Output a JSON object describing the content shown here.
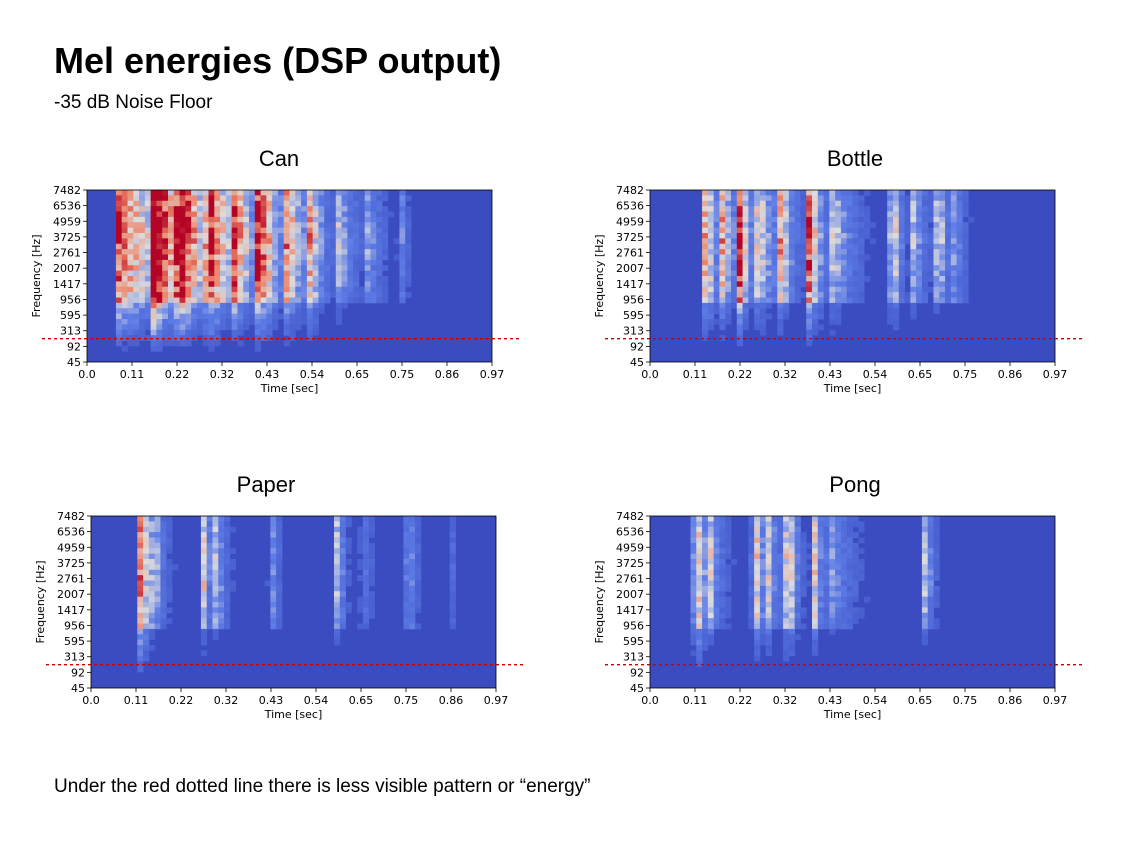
{
  "page": {
    "title": "Mel energies (DSP output)",
    "subtitle": "-35 dB Noise Floor",
    "footnote": "Under the red dotted line there is less visible pattern or “energy”"
  },
  "colors": {
    "background": "#3b4cc0",
    "cold": "#5d7ce6",
    "mid": "#dddcdc",
    "warm": "#ee8468",
    "hot": "#b40426",
    "noise_floor_line": "#cc0000"
  },
  "chart_data": [
    {
      "type": "heatmap",
      "title": "Can",
      "xlabel": "Time [sec]",
      "ylabel": "Frequency [Hz]",
      "x_ticks": [
        "0.0",
        "0.11",
        "0.22",
        "0.32",
        "0.43",
        "0.54",
        "0.65",
        "0.75",
        "0.86",
        "0.97"
      ],
      "y_ticks": [
        "7482",
        "6536",
        "4959",
        "3725",
        "2761",
        "2007",
        "1417",
        "956",
        "595",
        "313",
        "92",
        "45"
      ],
      "xlim": [
        0,
        0.97
      ],
      "noise_floor_hz": 200,
      "colormap": "coolwarm",
      "bursts": [
        {
          "t": 0.075,
          "width": 0.13,
          "intensity": 0.95,
          "low_reach": 0.55
        },
        {
          "t": 0.16,
          "width": 0.05,
          "intensity": 0.9,
          "low_reach": 0.5
        },
        {
          "t": 0.22,
          "width": 0.05,
          "intensity": 0.75,
          "low_reach": 0.5
        },
        {
          "t": 0.29,
          "width": 0.05,
          "intensity": 0.8,
          "low_reach": 0.45
        },
        {
          "t": 0.35,
          "width": 0.04,
          "intensity": 0.75,
          "low_reach": 0.45
        },
        {
          "t": 0.41,
          "width": 0.05,
          "intensity": 0.9,
          "low_reach": 0.5
        },
        {
          "t": 0.48,
          "width": 0.04,
          "intensity": 0.6,
          "low_reach": 0.45
        },
        {
          "t": 0.53,
          "width": 0.04,
          "intensity": 0.6,
          "low_reach": 0.45
        },
        {
          "t": 0.6,
          "width": 0.06,
          "intensity": 0.4,
          "low_reach": 0.3
        },
        {
          "t": 0.67,
          "width": 0.04,
          "intensity": 0.3,
          "low_reach": 0.2
        },
        {
          "t": 0.75,
          "width": 0.02,
          "intensity": 0.35,
          "low_reach": 0.1
        }
      ]
    },
    {
      "type": "heatmap",
      "title": "Bottle",
      "xlabel": "Time [sec]",
      "ylabel": "Frequency [Hz]",
      "x_ticks": [
        "0.0",
        "0.11",
        "0.22",
        "0.32",
        "0.43",
        "0.54",
        "0.65",
        "0.75",
        "0.86",
        "0.97"
      ],
      "y_ticks": [
        "7482",
        "6536",
        "4959",
        "3725",
        "2761",
        "2007",
        "1417",
        "956",
        "595",
        "313",
        "92",
        "45"
      ],
      "xlim": [
        0,
        0.97
      ],
      "noise_floor_hz": 200,
      "colormap": "coolwarm",
      "bursts": [
        {
          "t": 0.135,
          "width": 0.02,
          "intensity": 0.95,
          "low_reach": 0.5
        },
        {
          "t": 0.17,
          "width": 0.04,
          "intensity": 0.65,
          "low_reach": 0.4
        },
        {
          "t": 0.215,
          "width": 0.02,
          "intensity": 0.8,
          "low_reach": 0.45
        },
        {
          "t": 0.26,
          "width": 0.05,
          "intensity": 0.6,
          "low_reach": 0.4
        },
        {
          "t": 0.31,
          "width": 0.03,
          "intensity": 0.55,
          "low_reach": 0.35
        },
        {
          "t": 0.38,
          "width": 0.03,
          "intensity": 0.95,
          "low_reach": 0.5
        },
        {
          "t": 0.44,
          "width": 0.06,
          "intensity": 0.5,
          "low_reach": 0.35
        },
        {
          "t": 0.58,
          "width": 0.02,
          "intensity": 0.8,
          "low_reach": 0.4
        },
        {
          "t": 0.63,
          "width": 0.04,
          "intensity": 0.45,
          "low_reach": 0.3
        },
        {
          "t": 0.69,
          "width": 0.02,
          "intensity": 0.6,
          "low_reach": 0.3
        },
        {
          "t": 0.73,
          "width": 0.03,
          "intensity": 0.35,
          "low_reach": 0.25
        }
      ]
    },
    {
      "type": "heatmap",
      "title": "Paper",
      "xlabel": "Time [sec]",
      "ylabel": "Frequency [Hz]",
      "x_ticks": [
        "0.0",
        "0.11",
        "0.22",
        "0.32",
        "0.43",
        "0.54",
        "0.65",
        "0.75",
        "0.86",
        "0.97"
      ],
      "y_ticks": [
        "7482",
        "6536",
        "4959",
        "3725",
        "2761",
        "2007",
        "1417",
        "956",
        "595",
        "313",
        "92",
        "45"
      ],
      "xlim": [
        0,
        0.97
      ],
      "noise_floor_hz": 200,
      "colormap": "coolwarm",
      "bursts": [
        {
          "t": 0.12,
          "width": 0.02,
          "intensity": 0.95,
          "low_reach": 0.55
        },
        {
          "t": 0.15,
          "width": 0.04,
          "intensity": 0.35,
          "low_reach": 0.2
        },
        {
          "t": 0.27,
          "width": 0.02,
          "intensity": 0.6,
          "low_reach": 0.3
        },
        {
          "t": 0.3,
          "width": 0.03,
          "intensity": 0.4,
          "low_reach": 0.25
        },
        {
          "t": 0.43,
          "width": 0.02,
          "intensity": 0.5,
          "low_reach": 0.2
        },
        {
          "t": 0.59,
          "width": 0.02,
          "intensity": 0.55,
          "low_reach": 0.3
        },
        {
          "t": 0.65,
          "width": 0.03,
          "intensity": 0.3,
          "low_reach": 0.3
        },
        {
          "t": 0.76,
          "width": 0.02,
          "intensity": 0.5,
          "low_reach": 0.15
        },
        {
          "t": 0.86,
          "width": 0.02,
          "intensity": 0.25,
          "low_reach": 0.1
        }
      ]
    },
    {
      "type": "heatmap",
      "title": "Pong",
      "xlabel": "Time [sec]",
      "ylabel": "Frequency [Hz]",
      "x_ticks": [
        "0.0",
        "0.11",
        "0.22",
        "0.32",
        "0.43",
        "0.54",
        "0.65",
        "0.75",
        "0.86",
        "0.97"
      ],
      "y_ticks": [
        "7482",
        "6536",
        "4959",
        "3725",
        "2761",
        "2007",
        "1417",
        "956",
        "595",
        "313",
        "92",
        "45"
      ],
      "xlim": [
        0,
        0.97
      ],
      "noise_floor_hz": 200,
      "colormap": "coolwarm",
      "bursts": [
        {
          "t": 0.11,
          "width": 0.02,
          "intensity": 0.95,
          "low_reach": 0.55
        },
        {
          "t": 0.14,
          "width": 0.04,
          "intensity": 0.45,
          "low_reach": 0.35
        },
        {
          "t": 0.25,
          "width": 0.02,
          "intensity": 0.85,
          "low_reach": 0.45
        },
        {
          "t": 0.28,
          "width": 0.04,
          "intensity": 0.45,
          "low_reach": 0.4
        },
        {
          "t": 0.33,
          "width": 0.02,
          "intensity": 0.7,
          "low_reach": 0.45
        },
        {
          "t": 0.39,
          "width": 0.02,
          "intensity": 0.75,
          "low_reach": 0.4
        },
        {
          "t": 0.43,
          "width": 0.07,
          "intensity": 0.4,
          "low_reach": 0.35
        },
        {
          "t": 0.66,
          "width": 0.02,
          "intensity": 0.55,
          "low_reach": 0.35
        }
      ]
    }
  ]
}
